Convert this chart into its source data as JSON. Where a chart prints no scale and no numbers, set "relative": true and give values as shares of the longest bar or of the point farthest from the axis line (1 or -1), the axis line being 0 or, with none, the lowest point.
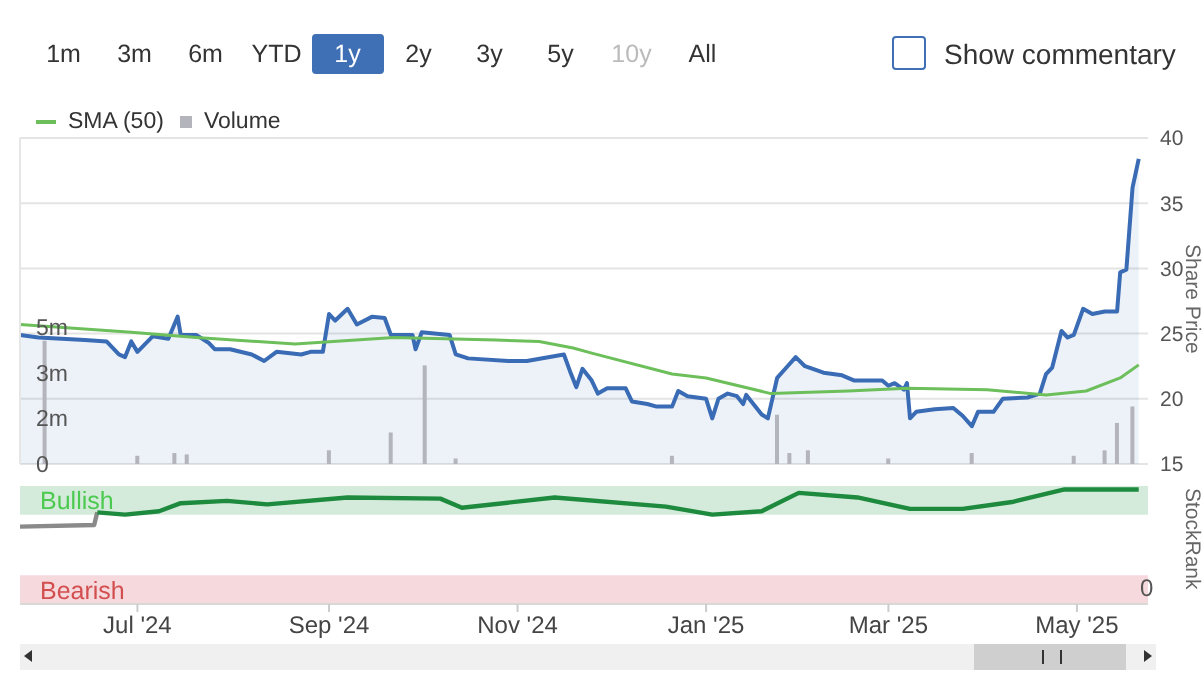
{
  "chart_data": [
    {
      "type": "area",
      "ylabel": "Share Price",
      "legend": "top left",
      "grid": "y",
      "tick_labels": "y",
      "annotations": [
        "1m",
        "3m",
        "6m",
        "YTD",
        "1y",
        "2y",
        "3y",
        "5y",
        "10y",
        "All",
        "Show commentary"
      ],
      "xlim": [
        "2024-05-24",
        "2025-05-24"
      ],
      "ylim": [
        15,
        40
      ],
      "yticks": [
        15,
        20,
        25,
        30,
        35,
        40
      ],
      "y2lim": [
        0,
        11.9
      ],
      "y2ticks": [
        {
          "value": 0,
          "label": "0"
        },
        {
          "value": 1.67,
          "label": "2m"
        },
        {
          "value": 3.33,
          "label": "3m"
        },
        {
          "value": 5,
          "label": "5m"
        }
      ],
      "series": [
        {
          "color": "#3a6bb5",
          "x": [
            "2024-05-24",
            "2024-05-30",
            "2024-06-14",
            "2024-06-21",
            "2024-06-25",
            "2024-06-27",
            "2024-06-29",
            "2024-07-01",
            "2024-07-06",
            "2024-07-11",
            "2024-07-14",
            "2024-07-15",
            "2024-07-20",
            "2024-07-24",
            "2024-07-26",
            "2024-07-31",
            "2024-08-07",
            "2024-08-11",
            "2024-08-15",
            "2024-08-23",
            "2024-08-26",
            "2024-08-30",
            "2024-09-01",
            "2024-09-03",
            "2024-09-07",
            "2024-09-10",
            "2024-09-15",
            "2024-09-19",
            "2024-09-21",
            "2024-09-28",
            "2024-09-29",
            "2024-10-01",
            "2024-10-10",
            "2024-10-12",
            "2024-10-16",
            "2024-10-29",
            "2024-11-04",
            "2024-11-16",
            "2024-11-18",
            "2024-11-20",
            "2024-11-22",
            "2024-11-25",
            "2024-11-27",
            "2024-11-30",
            "2024-12-06",
            "2024-12-08",
            "2024-12-13",
            "2024-12-16",
            "2024-12-21",
            "2024-12-23",
            "2024-12-26",
            "2025-01-01",
            "2025-01-03",
            "2025-01-05",
            "2025-01-08",
            "2025-01-11",
            "2025-01-13",
            "2025-01-14",
            "2025-01-19",
            "2025-01-21",
            "2025-01-24",
            "2025-01-27",
            "2025-01-30",
            "2025-02-02",
            "2025-02-08",
            "2025-02-14",
            "2025-02-18",
            "2025-02-27",
            "2025-03-01",
            "2025-03-03",
            "2025-03-06",
            "2025-03-07",
            "2025-03-08",
            "2025-03-10",
            "2025-03-16",
            "2025-03-22",
            "2025-03-25",
            "2025-03-28",
            "2025-03-30",
            "2025-04-04",
            "2025-04-07",
            "2025-04-15",
            "2025-04-19",
            "2025-04-21",
            "2025-04-23",
            "2025-04-26",
            "2025-04-28",
            "2025-04-30",
            "2025-05-03",
            "2025-05-06",
            "2025-05-10",
            "2025-05-14",
            "2025-05-15",
            "2025-05-17",
            "2025-05-19",
            "2025-05-21"
          ],
          "values": [
            24.9,
            24.7,
            24.5,
            24.4,
            23.4,
            23.2,
            24.4,
            23.6,
            24.8,
            24.6,
            26.3,
            24.9,
            24.9,
            24.3,
            23.8,
            23.8,
            23.4,
            22.9,
            23.6,
            23.4,
            23.6,
            23.6,
            26.5,
            26.0,
            26.9,
            25.7,
            26.3,
            26.2,
            24.9,
            24.9,
            23.8,
            25.1,
            24.9,
            23.4,
            23.1,
            22.9,
            22.9,
            23.4,
            22.1,
            20.9,
            22.3,
            21.4,
            20.4,
            20.8,
            20.8,
            19.8,
            19.6,
            19.4,
            19.4,
            20.6,
            20.2,
            20.0,
            18.5,
            20.0,
            20.4,
            20.2,
            19.6,
            20.3,
            18.8,
            18.5,
            21.6,
            22.4,
            23.2,
            22.5,
            22.0,
            21.8,
            21.4,
            21.4,
            21.0,
            21.2,
            20.7,
            21.2,
            18.5,
            19.0,
            19.2,
            19.3,
            18.7,
            17.9,
            19.0,
            19.0,
            20.0,
            20.1,
            20.4,
            21.9,
            22.4,
            25.2,
            24.7,
            24.9,
            26.9,
            26.5,
            26.7,
            26.7,
            29.7,
            29.9,
            36.2,
            38.4
          ]
        },
        {
          "type": "line",
          "name": "SMA (50)",
          "color": "#6cbf5a",
          "x": [
            "2024-05-24",
            "2024-06-29",
            "2024-07-20",
            "2024-08-21",
            "2024-09-22",
            "2024-10-25",
            "2024-11-08",
            "2024-11-19",
            "2024-11-25",
            "2024-12-21",
            "2025-01-01",
            "2025-01-22",
            "2025-02-16",
            "2025-03-07",
            "2025-04-02",
            "2025-04-21",
            "2025-05-04",
            "2025-05-15",
            "2025-05-21"
          ],
          "values": [
            25.7,
            25.1,
            24.7,
            24.2,
            24.7,
            24.5,
            24.4,
            23.9,
            23.5,
            21.9,
            21.6,
            20.4,
            20.6,
            20.8,
            20.7,
            20.3,
            20.6,
            21.6,
            22.6
          ]
        },
        {
          "type": "bar",
          "name": "Volume",
          "color": "#b4b4bc",
          "axis": "y2",
          "x": [
            "2024-06-01",
            "2024-07-01",
            "2024-07-13",
            "2024-07-17",
            "2024-09-01",
            "2024-09-21",
            "2024-10-02",
            "2024-10-12",
            "2024-12-21",
            "2025-01-24",
            "2025-01-28",
            "2025-02-03",
            "2025-03-01",
            "2025-03-28",
            "2025-04-30",
            "2025-05-10",
            "2025-05-14",
            "2025-05-19"
          ],
          "values": [
            4.5,
            0.3,
            0.4,
            0.35,
            0.5,
            1.15,
            3.6,
            0.2,
            0.3,
            1.8,
            0.4,
            0.5,
            0.2,
            0.4,
            0.3,
            0.5,
            1.5,
            2.1
          ]
        }
      ]
    },
    {
      "type": "line",
      "relative": true,
      "ylabel": "StockRank",
      "annotations": [
        "0"
      ],
      "xlim": [
        "2024-05-24",
        "2025-05-24"
      ],
      "xticks": [
        {
          "value": "2024-07-01",
          "label": "Jul '24"
        },
        {
          "value": "2024-09-01",
          "label": "Sep '24"
        },
        {
          "value": "2024-11-01",
          "label": "Nov '24"
        },
        {
          "value": "2025-01-01",
          "label": "Jan '25"
        },
        {
          "value": "2025-03-01",
          "label": "Mar '25"
        },
        {
          "value": "2025-05-01",
          "label": "May '25"
        }
      ],
      "bands": [
        {
          "axis": "y",
          "from": 0.78,
          "to": 1.03,
          "label": "Bullish",
          "color": "#d4ebdc"
        },
        {
          "axis": "y",
          "from": 0,
          "to": 0.25,
          "label": "Bearish",
          "color": "#f6d9dc"
        }
      ],
      "series": [
        {
          "color": "#8a8a8a",
          "x": [
            "2024-05-24",
            "2024-06-17",
            "2024-06-18"
          ],
          "values": [
            0.675,
            0.69,
            0.8
          ]
        },
        {
          "color": "#1e8a3e",
          "x": [
            "2024-06-18",
            "2024-06-27",
            "2024-07-08",
            "2024-07-15",
            "2024-07-30",
            "2024-08-12",
            "2024-09-07",
            "2024-10-07",
            "2024-10-14",
            "2024-11-13",
            "2024-12-19",
            "2025-01-03",
            "2025-01-19",
            "2025-01-31",
            "2025-02-19",
            "2025-03-08",
            "2025-03-25",
            "2025-04-10",
            "2025-04-27",
            "2025-05-21"
          ],
          "values": [
            0.8,
            0.78,
            0.81,
            0.88,
            0.9,
            0.87,
            0.93,
            0.92,
            0.84,
            0.93,
            0.85,
            0.78,
            0.81,
            0.97,
            0.93,
            0.83,
            0.83,
            0.89,
            1.0,
            1.0
          ]
        }
      ]
    }
  ]
}
